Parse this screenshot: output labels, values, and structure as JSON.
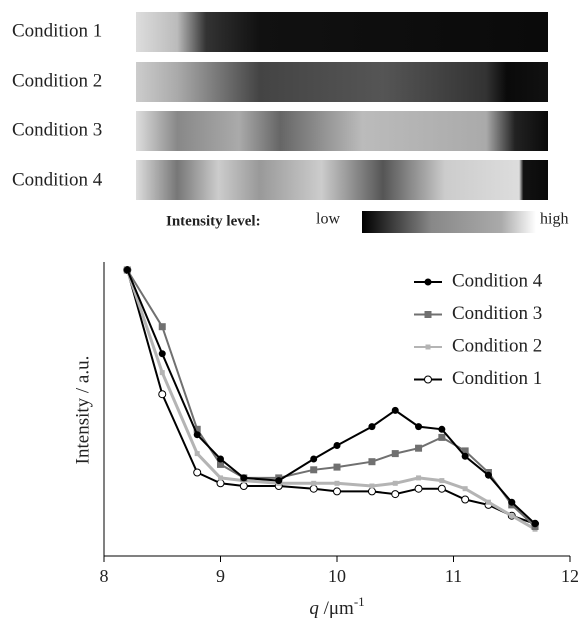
{
  "image_panel": {
    "rows": [
      "Condition 1",
      "Condition 2",
      "Condition 3",
      "Condition 4"
    ],
    "colorbar": {
      "title": "Intensity level:",
      "low": "low",
      "high": "high"
    }
  },
  "chart_data": {
    "type": "line",
    "y_label": "Intensity / a.u.",
    "x_label": {
      "symbol": "q",
      "unit": " /μm",
      "exponent": "-1"
    },
    "xlim": [
      8,
      12
    ],
    "xticks": [
      8,
      9,
      10,
      11,
      12
    ],
    "ylim": [
      0,
      100
    ],
    "legend": "upper right",
    "x": [
      8.2,
      8.5,
      8.8,
      9.0,
      9.2,
      9.5,
      9.8,
      10.0,
      10.3,
      10.5,
      10.7,
      10.9,
      11.1,
      11.3,
      11.5,
      11.7
    ],
    "series": [
      {
        "name": "Condition 4",
        "color": "#000000",
        "marker": "filled-circle",
        "values": [
          100,
          69,
          39,
          30,
          23,
          22,
          30,
          35,
          42,
          48,
          42,
          41,
          31,
          24,
          14,
          6
        ]
      },
      {
        "name": "Condition 3",
        "color": "#707070",
        "marker": "square",
        "values": [
          100,
          79,
          41,
          28,
          23,
          23,
          26,
          27,
          29,
          32,
          34,
          38,
          33,
          25,
          13,
          5
        ]
      },
      {
        "name": "Condition 2",
        "color": "#b4b4b4",
        "marker": "small",
        "values": [
          100,
          62,
          32,
          23,
          22,
          21,
          21,
          21,
          20,
          21,
          23,
          22,
          19,
          14,
          9,
          4
        ]
      },
      {
        "name": "Condition 1",
        "color": "#000000",
        "marker": "open-circle",
        "values": [
          100,
          54,
          25,
          21,
          20,
          20,
          19,
          18,
          18,
          17,
          19,
          19,
          15,
          13,
          9,
          6
        ]
      }
    ]
  }
}
